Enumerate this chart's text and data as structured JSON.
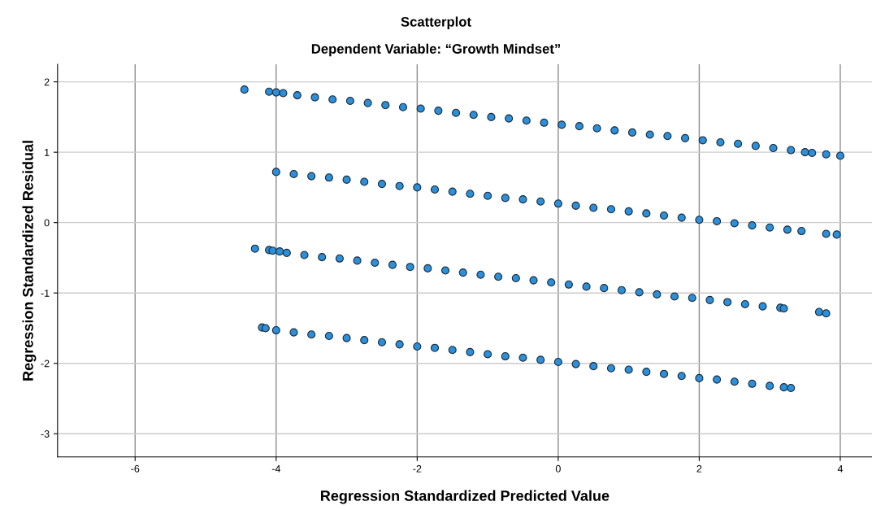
{
  "chart_data": {
    "type": "scatter",
    "title": "Scatterplot",
    "subtitle": "Dependent Variable: “Growth Mindset”",
    "xlabel": "Regression Standardized Predicted Value",
    "ylabel": "Regression Standardized Residual",
    "xlim": [
      -7.1,
      4.45
    ],
    "ylim": [
      -3.33,
      2.25
    ],
    "xticks": [
      -6,
      -4,
      -2,
      0,
      2,
      4
    ],
    "yticks": [
      -3,
      -2,
      -1,
      0,
      1,
      2
    ],
    "grid": true,
    "marker": "circle",
    "series": [
      {
        "color": "#2b8fd9",
        "x": [
          -4.45,
          -4.1,
          -4.0,
          -3.9,
          -3.7,
          -3.45,
          -3.2,
          -2.95,
          -2.7,
          -2.45,
          -2.2,
          -1.95,
          -1.7,
          -1.45,
          -1.2,
          -0.95,
          -0.7,
          -0.45,
          -0.2,
          0.05,
          0.3,
          0.55,
          0.8,
          1.05,
          1.3,
          1.55,
          1.8,
          2.05,
          2.3,
          2.55,
          2.8,
          3.05,
          3.3,
          3.5,
          3.6,
          3.8,
          4.0
        ],
        "values": [
          1.89,
          1.86,
          1.85,
          1.84,
          1.81,
          1.78,
          1.75,
          1.73,
          1.7,
          1.67,
          1.64,
          1.62,
          1.59,
          1.56,
          1.53,
          1.5,
          1.48,
          1.45,
          1.42,
          1.39,
          1.37,
          1.34,
          1.31,
          1.28,
          1.25,
          1.23,
          1.2,
          1.17,
          1.14,
          1.12,
          1.09,
          1.06,
          1.03,
          1.0,
          0.99,
          0.97,
          0.95
        ]
      },
      {
        "color": "#2b8fd9",
        "x": [
          -4.0,
          -3.75,
          -3.5,
          -3.25,
          -3.0,
          -2.75,
          -2.5,
          -2.25,
          -2.0,
          -1.75,
          -1.5,
          -1.25,
          -1.0,
          -0.75,
          -0.5,
          -0.25,
          0.0,
          0.25,
          0.5,
          0.75,
          1.0,
          1.25,
          1.5,
          1.75,
          2.0,
          2.25,
          2.5,
          2.75,
          3.0,
          3.25,
          3.45,
          3.8,
          3.95
        ],
        "values": [
          0.72,
          0.69,
          0.66,
          0.64,
          0.61,
          0.58,
          0.55,
          0.52,
          0.5,
          0.47,
          0.44,
          0.41,
          0.38,
          0.35,
          0.33,
          0.3,
          0.27,
          0.24,
          0.21,
          0.19,
          0.16,
          0.13,
          0.1,
          0.07,
          0.04,
          0.02,
          -0.01,
          -0.04,
          -0.07,
          -0.1,
          -0.12,
          -0.16,
          -0.17
        ]
      },
      {
        "color": "#2b8fd9",
        "x": [
          -4.3,
          -4.1,
          -4.05,
          -3.95,
          -3.85,
          -3.6,
          -3.35,
          -3.1,
          -2.85,
          -2.6,
          -2.35,
          -2.1,
          -1.85,
          -1.6,
          -1.35,
          -1.1,
          -0.85,
          -0.6,
          -0.35,
          -0.1,
          0.15,
          0.4,
          0.65,
          0.9,
          1.15,
          1.4,
          1.65,
          1.9,
          2.15,
          2.4,
          2.65,
          2.9,
          3.15,
          3.2,
          3.7,
          3.8
        ],
        "values": [
          -0.37,
          -0.39,
          -0.4,
          -0.41,
          -0.43,
          -0.46,
          -0.49,
          -0.51,
          -0.54,
          -0.57,
          -0.6,
          -0.63,
          -0.65,
          -0.68,
          -0.71,
          -0.74,
          -0.77,
          -0.79,
          -0.82,
          -0.85,
          -0.88,
          -0.91,
          -0.93,
          -0.96,
          -0.99,
          -1.02,
          -1.05,
          -1.07,
          -1.1,
          -1.13,
          -1.16,
          -1.19,
          -1.21,
          -1.22,
          -1.27,
          -1.29
        ]
      },
      {
        "color": "#2b8fd9",
        "x": [
          -4.2,
          -4.15,
          -4.0,
          -3.75,
          -3.5,
          -3.25,
          -3.0,
          -2.75,
          -2.5,
          -2.25,
          -2.0,
          -1.75,
          -1.5,
          -1.25,
          -1.0,
          -0.75,
          -0.5,
          -0.25,
          0.0,
          0.25,
          0.5,
          0.75,
          1.0,
          1.25,
          1.5,
          1.75,
          2.0,
          2.25,
          2.5,
          2.75,
          3.0,
          3.2,
          3.3
        ],
        "values": [
          -1.49,
          -1.5,
          -1.53,
          -1.56,
          -1.59,
          -1.61,
          -1.64,
          -1.67,
          -1.7,
          -1.73,
          -1.76,
          -1.78,
          -1.81,
          -1.84,
          -1.87,
          -1.9,
          -1.92,
          -1.95,
          -1.98,
          -2.01,
          -2.04,
          -2.07,
          -2.09,
          -2.12,
          -2.15,
          -2.18,
          -2.21,
          -2.23,
          -2.26,
          -2.29,
          -2.32,
          -2.34,
          -2.35
        ]
      }
    ]
  }
}
